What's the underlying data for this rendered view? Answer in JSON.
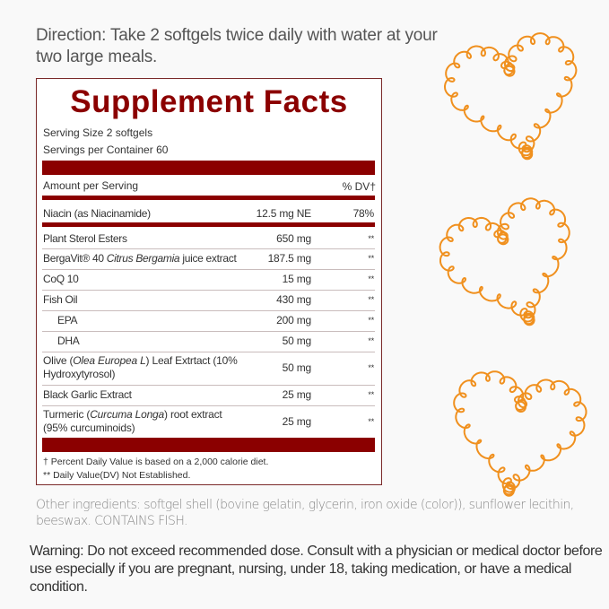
{
  "direction": "Direction: Take 2 softgels twice daily with water at your two large meals.",
  "facts": {
    "title": "Supplement Facts",
    "serving_size": "Serving Size 2 softgels",
    "servings_per_container": "Servings per Container 60",
    "amount_header": "Amount per Serving",
    "dv_header": "% DV†",
    "rows": [
      {
        "pre": "Niacin (as Niacinamide)",
        "it": "",
        "post": "",
        "amount": "12.5 mg NE",
        "dv": "78%"
      },
      {
        "pre": "Plant Sterol Esters",
        "it": "",
        "post": "",
        "amount": "650 mg",
        "dv": "**"
      },
      {
        "pre": "BergaVit® 40 ",
        "it": "Citrus Bergamia",
        "post": " juice extract",
        "amount": "187.5 mg",
        "dv": "**"
      },
      {
        "pre": "CoQ 10",
        "it": "",
        "post": "",
        "amount": "15 mg",
        "dv": "**"
      },
      {
        "pre": "Fish Oil",
        "it": "",
        "post": "",
        "amount": "430 mg",
        "dv": "**"
      },
      {
        "pre": "EPA",
        "it": "",
        "post": "",
        "amount": "200 mg",
        "dv": "**",
        "indent": true
      },
      {
        "pre": "DHA",
        "it": "",
        "post": "",
        "amount": "50 mg",
        "dv": "**",
        "indent": true
      },
      {
        "pre": "Olive (",
        "it": "Olea Europea L",
        "post": ") Leaf Extrtact (10% Hydroxytyrosol)",
        "amount": "50 mg",
        "dv": "**"
      },
      {
        "pre": "Black Garlic Extract",
        "it": "",
        "post": "",
        "amount": "25 mg",
        "dv": "**"
      },
      {
        "pre": "Turmeric (",
        "it": "Curcuma Longa",
        "post": ") root extract (95% curcuminoids)",
        "amount": "25 mg",
        "dv": "**"
      }
    ],
    "footnote_1": "† Percent Daily Value is based on a 2,000 calorie diet.",
    "footnote_2": "** Daily Value(DV) Not Established."
  },
  "other_ingredients": "Other ingredients: softgel shell (bovine gelatin, glycerin, iron oxide (color)), sunflower lecithin, beeswax. CONTAINS FISH.",
  "warning": "Warning: Do not exceed recommended dose. Consult with a physician or medical doctor before use especially if you are pregnant, nursing, under 18, taking medication, or have a medical condition.",
  "colors": {
    "label_red": "#8b0000",
    "heart_orange": "#f0901e"
  },
  "decorations": [
    "curly-heart-icon",
    "curly-heart-icon",
    "curly-heart-icon"
  ]
}
